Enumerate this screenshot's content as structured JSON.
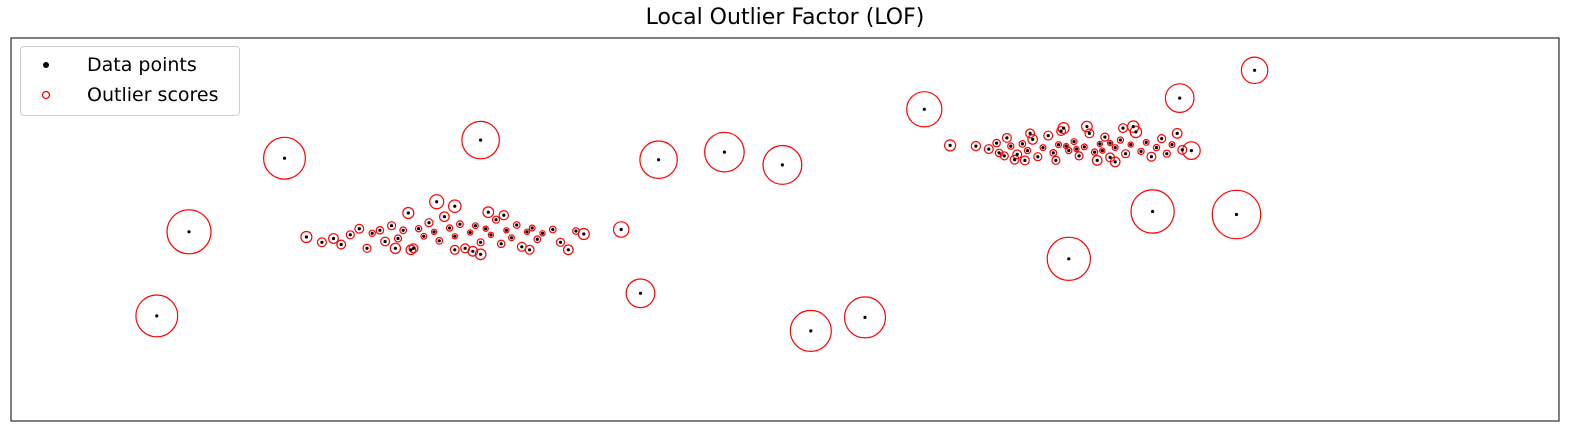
{
  "title": "Local Outlier Factor (LOF)",
  "legend": {
    "data_points_label": "Data points",
    "outlier_scores_label": "Outlier scores"
  },
  "colors": {
    "points": "#000000",
    "scores": "#ff0000",
    "axes": "#000000"
  },
  "chart_data": {
    "type": "scatter",
    "title": "Local Outlier Factor (LOF)",
    "xlabel": "",
    "ylabel": "",
    "xlim": [
      -6.0,
      6.0
    ],
    "ylim": [
      -2.5,
      2.6
    ],
    "grid": false,
    "ticks_visible": false,
    "legend_position": "top-left",
    "series": [
      {
        "name": "Data points",
        "marker": "filled-dot",
        "color": "#000000",
        "points": [
          [
            -4.62,
            0.02
          ],
          [
            -3.88,
            1.0
          ],
          [
            -2.36,
            1.24
          ],
          [
            -0.47,
            1.08
          ],
          [
            1.08,
            1.65
          ],
          [
            -0.98,
            0.98
          ],
          [
            -0.02,
            0.91
          ],
          [
            0.2,
            -1.3
          ],
          [
            0.62,
            -1.12
          ],
          [
            2.2,
            -0.34
          ],
          [
            2.85,
            0.29
          ],
          [
            3.5,
            0.25
          ],
          [
            3.06,
            1.8
          ],
          [
            3.15,
            1.1
          ],
          [
            3.64,
            2.17
          ],
          [
            -4.87,
            -1.1
          ],
          [
            -1.27,
            0.05
          ],
          [
            -1.12,
            -0.8
          ],
          [
            -3.71,
            -0.05
          ],
          [
            -3.59,
            -0.12
          ],
          [
            -3.5,
            -0.07
          ],
          [
            -3.44,
            -0.15
          ],
          [
            -3.37,
            -0.02
          ],
          [
            -3.3,
            0.06
          ],
          [
            -3.24,
            -0.2
          ],
          [
            -3.2,
            0.0
          ],
          [
            -3.14,
            0.04
          ],
          [
            -3.1,
            -0.11
          ],
          [
            -3.05,
            0.1
          ],
          [
            -3.0,
            -0.07
          ],
          [
            -2.96,
            0.04
          ],
          [
            -2.92,
            0.27
          ],
          [
            -2.88,
            -0.2
          ],
          [
            -2.84,
            0.06
          ],
          [
            -2.8,
            -0.04
          ],
          [
            -2.76,
            0.14
          ],
          [
            -2.72,
            0.02
          ],
          [
            -2.68,
            -0.1
          ],
          [
            -2.64,
            0.22
          ],
          [
            -2.6,
            0.07
          ],
          [
            -2.56,
            -0.04
          ],
          [
            -2.52,
            0.12
          ],
          [
            -2.48,
            -0.2
          ],
          [
            -2.44,
            0.01
          ],
          [
            -2.4,
            0.1
          ],
          [
            -2.36,
            -0.12
          ],
          [
            -2.32,
            0.06
          ],
          [
            -2.28,
            -0.02
          ],
          [
            -2.24,
            0.18
          ],
          [
            -2.2,
            -0.14
          ],
          [
            -2.16,
            0.04
          ],
          [
            -2.12,
            -0.06
          ],
          [
            -2.08,
            0.11
          ],
          [
            -2.04,
            -0.18
          ],
          [
            -2.0,
            0.02
          ],
          [
            -1.96,
            0.07
          ],
          [
            -1.92,
            -0.08
          ],
          [
            -1.88,
            0.0
          ],
          [
            -1.8,
            0.05
          ],
          [
            -1.74,
            -0.12
          ],
          [
            -1.68,
            -0.22
          ],
          [
            -1.62,
            0.03
          ],
          [
            -1.56,
            -0.01
          ],
          [
            -2.7,
            0.42
          ],
          [
            -2.56,
            0.36
          ],
          [
            -2.3,
            0.28
          ],
          [
            -2.18,
            0.24
          ],
          [
            -2.42,
            -0.24
          ],
          [
            -2.36,
            -0.28
          ],
          [
            -2.56,
            -0.22
          ],
          [
            -2.9,
            -0.22
          ],
          [
            -3.02,
            -0.2
          ],
          [
            -1.98,
            -0.22
          ],
          [
            1.28,
            1.17
          ],
          [
            1.48,
            1.16
          ],
          [
            1.58,
            1.12
          ],
          [
            1.64,
            1.2
          ],
          [
            1.7,
            1.03
          ],
          [
            1.75,
            1.16
          ],
          [
            1.8,
            1.05
          ],
          [
            1.84,
            1.19
          ],
          [
            1.88,
            1.1
          ],
          [
            1.92,
            1.25
          ],
          [
            1.96,
            1.02
          ],
          [
            2.0,
            1.14
          ],
          [
            2.04,
            1.3
          ],
          [
            2.08,
            1.07
          ],
          [
            2.12,
            1.18
          ],
          [
            2.16,
            1.4
          ],
          [
            2.2,
            1.1
          ],
          [
            2.24,
            1.22
          ],
          [
            2.28,
            1.03
          ],
          [
            2.32,
            1.15
          ],
          [
            2.36,
            1.33
          ],
          [
            2.4,
            1.08
          ],
          [
            2.44,
            1.19
          ],
          [
            2.48,
            1.28
          ],
          [
            2.52,
            1.01
          ],
          [
            2.56,
            1.14
          ],
          [
            2.6,
            1.24
          ],
          [
            2.64,
            1.06
          ],
          [
            2.68,
            1.18
          ],
          [
            2.72,
            1.35
          ],
          [
            2.76,
            1.09
          ],
          [
            2.8,
            1.21
          ],
          [
            2.84,
            1.02
          ],
          [
            2.88,
            1.14
          ],
          [
            2.92,
            1.26
          ],
          [
            2.96,
            1.06
          ],
          [
            3.0,
            1.18
          ],
          [
            3.04,
            1.33
          ],
          [
            3.08,
            1.11
          ],
          [
            1.78,
            0.98
          ],
          [
            1.86,
            0.97
          ],
          [
            2.1,
            0.97
          ],
          [
            2.42,
            0.97
          ],
          [
            2.56,
            0.95
          ],
          [
            2.62,
            1.4
          ],
          [
            2.7,
            1.42
          ],
          [
            2.34,
            1.42
          ],
          [
            2.14,
            1.36
          ],
          [
            1.9,
            1.33
          ],
          [
            1.72,
            1.27
          ],
          [
            1.66,
            1.07
          ],
          [
            2.46,
            1.1
          ],
          [
            2.52,
            1.2
          ],
          [
            2.26,
            1.12
          ],
          [
            2.18,
            1.16
          ]
        ]
      },
      {
        "name": "Outlier scores",
        "marker": "open-circle",
        "color": "#ff0000",
        "radius_encodes": "LOF outlier score",
        "radii_relative": [
          1.0,
          0.95,
          0.85,
          0.9,
          0.8,
          0.85,
          0.88,
          0.93,
          0.93,
          0.98,
          0.98,
          1.1,
          0.65,
          0.4,
          0.6,
          0.95,
          0.35,
          0.65,
          0.25,
          0.2,
          0.22,
          0.2,
          0.18,
          0.2,
          0.18,
          0.14,
          0.17,
          0.2,
          0.18,
          0.16,
          0.15,
          0.25,
          0.2,
          0.14,
          0.13,
          0.18,
          0.12,
          0.15,
          0.22,
          0.14,
          0.12,
          0.15,
          0.2,
          0.12,
          0.13,
          0.16,
          0.12,
          0.12,
          0.16,
          0.17,
          0.12,
          0.13,
          0.15,
          0.2,
          0.12,
          0.13,
          0.15,
          0.12,
          0.15,
          0.18,
          0.22,
          0.15,
          0.25,
          0.32,
          0.28,
          0.24,
          0.21,
          0.22,
          0.24,
          0.2,
          0.22,
          0.23,
          0.2,
          0.25,
          0.21,
          0.2,
          0.17,
          0.18,
          0.14,
          0.2,
          0.15,
          0.14,
          0.22,
          0.18,
          0.13,
          0.2,
          0.15,
          0.13,
          0.25,
          0.14,
          0.13,
          0.18,
          0.13,
          0.2,
          0.14,
          0.12,
          0.18,
          0.2,
          0.13,
          0.14,
          0.18,
          0.12,
          0.26,
          0.14,
          0.13,
          0.2,
          0.14,
          0.18,
          0.16,
          0.13,
          0.22,
          0.2,
          0.2,
          0.2,
          0.18,
          0.22,
          0.22,
          0.2,
          0.26,
          0.24,
          0.2,
          0.2,
          0.2,
          0.17,
          0.12,
          0.12,
          0.12,
          0.12
        ]
      }
    ]
  }
}
